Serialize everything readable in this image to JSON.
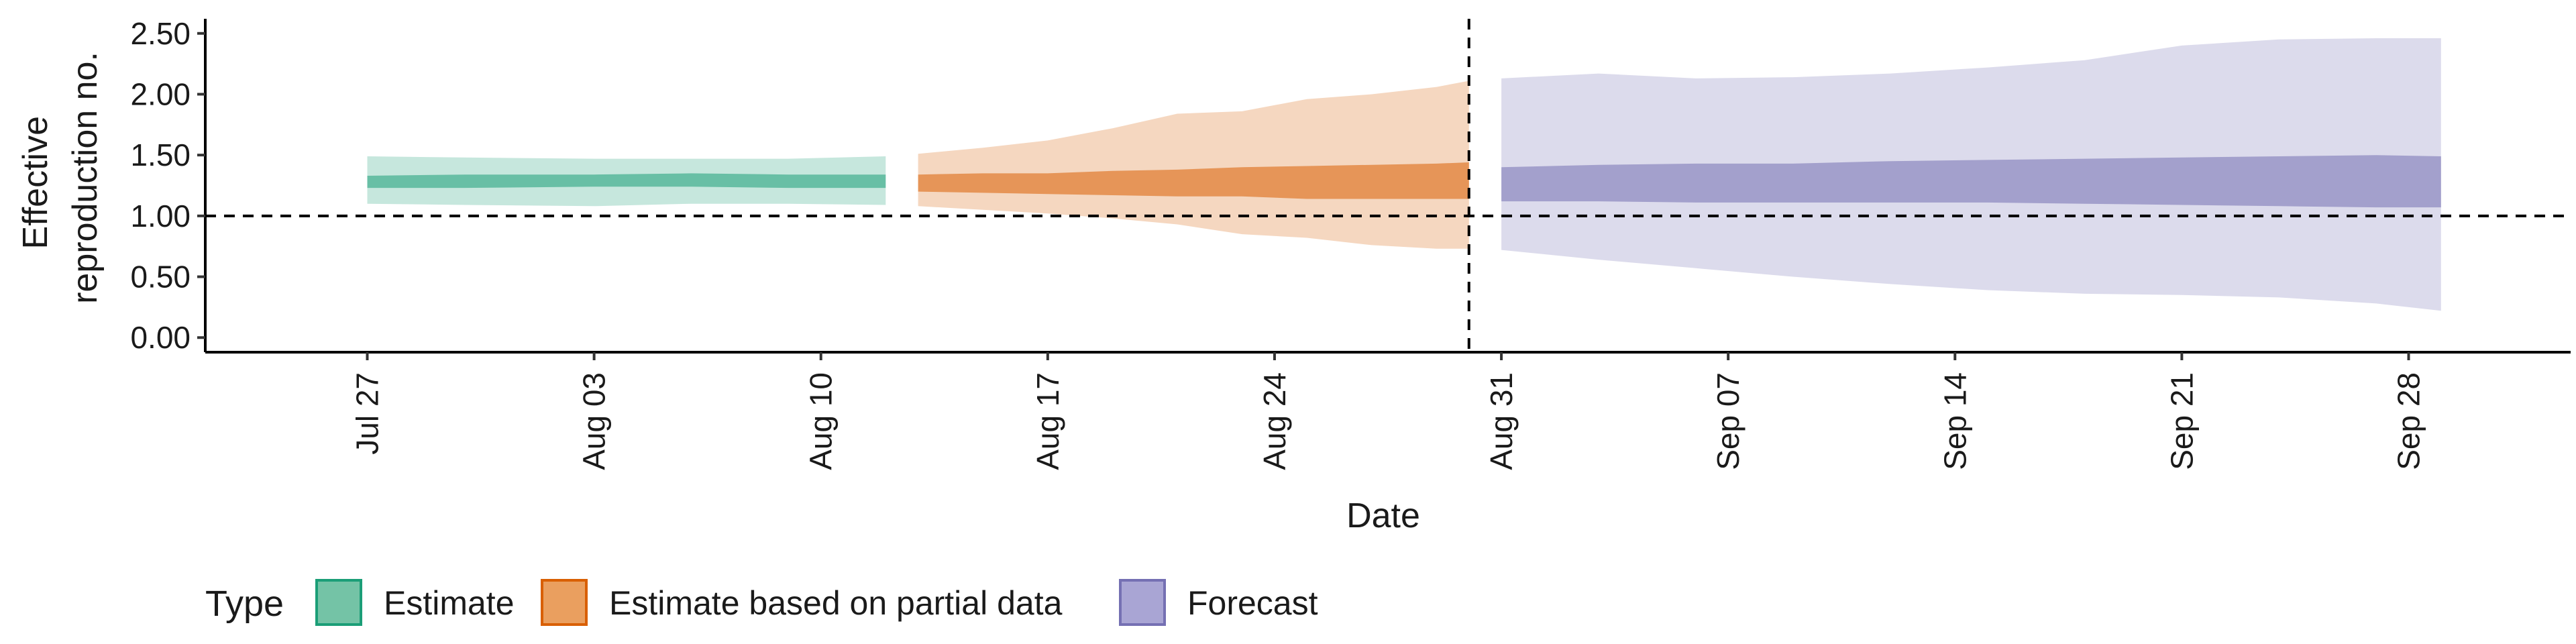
{
  "chart_data": {
    "type": "area",
    "title": "",
    "xlabel": "Date",
    "ylabel_lines": [
      "Effective",
      "reproduction no."
    ],
    "x_range": [
      "2020-07-22",
      "2020-10-03"
    ],
    "ylim": [
      -0.12,
      2.62
    ],
    "y_ticks": [
      0.0,
      0.5,
      1.0,
      1.5,
      2.0,
      2.5
    ],
    "y_tick_labels": [
      "0.00",
      "0.50",
      "1.00",
      "1.50",
      "2.00",
      "2.50"
    ],
    "x_ticks": [
      "2020-07-27",
      "2020-08-03",
      "2020-08-10",
      "2020-08-17",
      "2020-08-24",
      "2020-08-31",
      "2020-09-07",
      "2020-09-14",
      "2020-09-21",
      "2020-09-28"
    ],
    "x_tick_labels": [
      "Jul 27",
      "Aug 03",
      "Aug 10",
      "Aug 17",
      "Aug 24",
      "Aug 31",
      "Sep 07",
      "Sep 14",
      "Sep 21",
      "Sep 28"
    ],
    "reference_line_y": 1.0,
    "forecast_date": "2020-08-30",
    "grid": false,
    "legend": {
      "position": "bottom-left",
      "title": "Type",
      "items": [
        {
          "label": "Estimate",
          "fill": "#74c3a6",
          "stroke": "#1b9e77"
        },
        {
          "label": "Estimate based on partial data",
          "fill": "#ea9f5f",
          "stroke": "#d95f02"
        },
        {
          "label": "Forecast",
          "fill": "#a9a5d4",
          "stroke": "#7570b3"
        }
      ]
    },
    "series": [
      {
        "name": "Estimate",
        "color": "#1b9e77",
        "dates": [
          "2020-07-27",
          "2020-07-30",
          "2020-08-03",
          "2020-08-06",
          "2020-08-09",
          "2020-08-12"
        ],
        "lower90": [
          1.1,
          1.09,
          1.08,
          1.1,
          1.1,
          1.09
        ],
        "upper90": [
          1.49,
          1.48,
          1.47,
          1.47,
          1.47,
          1.49
        ],
        "lower50": [
          1.23,
          1.23,
          1.24,
          1.24,
          1.23,
          1.23
        ],
        "upper50": [
          1.33,
          1.34,
          1.34,
          1.35,
          1.34,
          1.34
        ]
      },
      {
        "name": "Estimate based on partial data",
        "color": "#d95f02",
        "dates": [
          "2020-08-13",
          "2020-08-15",
          "2020-08-17",
          "2020-08-19",
          "2020-08-21",
          "2020-08-23",
          "2020-08-25",
          "2020-08-27",
          "2020-08-29",
          "2020-08-30"
        ],
        "lower90": [
          1.08,
          1.05,
          1.02,
          0.98,
          0.93,
          0.85,
          0.82,
          0.76,
          0.73,
          0.73
        ],
        "upper90": [
          1.51,
          1.56,
          1.62,
          1.72,
          1.84,
          1.86,
          1.96,
          2.0,
          2.06,
          2.11
        ],
        "lower50": [
          1.2,
          1.19,
          1.18,
          1.17,
          1.16,
          1.16,
          1.14,
          1.14,
          1.14,
          1.14
        ],
        "upper50": [
          1.34,
          1.35,
          1.35,
          1.37,
          1.38,
          1.4,
          1.41,
          1.42,
          1.43,
          1.44
        ]
      },
      {
        "name": "Forecast",
        "color": "#7570b3",
        "dates": [
          "2020-08-31",
          "2020-09-03",
          "2020-09-06",
          "2020-09-09",
          "2020-09-12",
          "2020-09-15",
          "2020-09-18",
          "2020-09-21",
          "2020-09-24",
          "2020-09-27",
          "2020-09-29"
        ],
        "lower90": [
          0.72,
          0.64,
          0.57,
          0.5,
          0.44,
          0.39,
          0.36,
          0.35,
          0.33,
          0.28,
          0.22
        ],
        "upper90": [
          2.13,
          2.17,
          2.13,
          2.14,
          2.17,
          2.22,
          2.28,
          2.4,
          2.45,
          2.46,
          2.46
        ],
        "lower50": [
          1.12,
          1.12,
          1.11,
          1.11,
          1.11,
          1.11,
          1.1,
          1.09,
          1.08,
          1.07,
          1.07
        ],
        "upper50": [
          1.4,
          1.42,
          1.43,
          1.43,
          1.45,
          1.46,
          1.47,
          1.48,
          1.49,
          1.5,
          1.49
        ]
      }
    ]
  }
}
